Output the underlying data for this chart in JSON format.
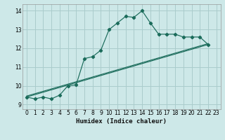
{
  "xlabel": "Humidex (Indice chaleur)",
  "background_color": "#cce8e8",
  "grid_color": "#aacccc",
  "line_color": "#1a6b5a",
  "xlim": [
    -0.5,
    23.5
  ],
  "ylim": [
    8.75,
    14.35
  ],
  "xticks": [
    0,
    1,
    2,
    3,
    4,
    5,
    6,
    7,
    8,
    9,
    10,
    11,
    12,
    13,
    14,
    15,
    16,
    17,
    18,
    19,
    20,
    21,
    22,
    23
  ],
  "yticks": [
    9,
    10,
    11,
    12,
    13,
    14
  ],
  "line1_x": [
    0,
    1,
    2,
    3,
    4,
    5,
    6,
    7,
    8,
    9,
    10,
    11,
    12,
    13,
    14,
    15,
    16,
    17,
    18,
    19,
    20,
    21,
    22
  ],
  "line1_y": [
    9.4,
    9.3,
    9.4,
    9.3,
    9.5,
    10.0,
    10.05,
    11.45,
    11.55,
    11.9,
    13.0,
    13.35,
    13.7,
    13.65,
    14.0,
    13.35,
    12.75,
    12.75,
    12.75,
    12.6,
    12.6,
    12.6,
    12.2
  ],
  "line2_x": [
    0,
    23
  ],
  "line2_y": [
    9.4,
    12.2
  ],
  "line3_x": [
    0,
    23
  ],
  "line3_y": [
    9.4,
    12.2
  ]
}
